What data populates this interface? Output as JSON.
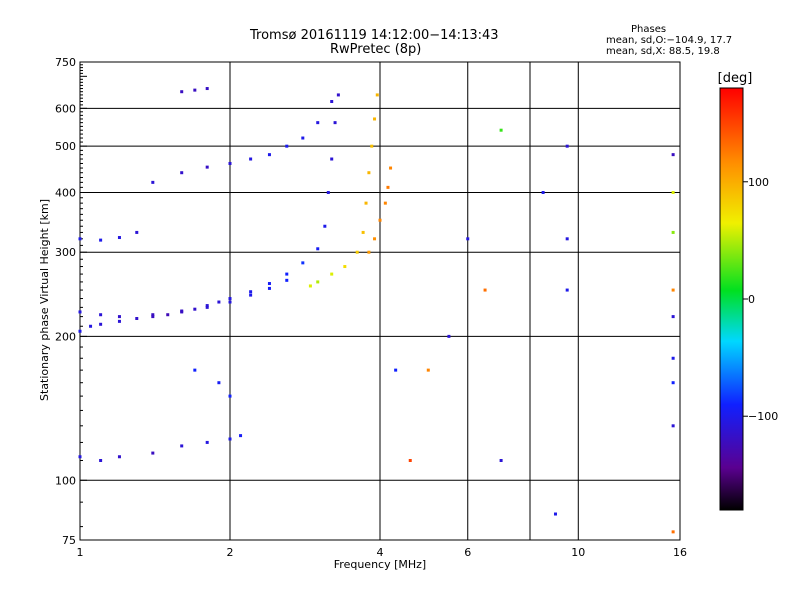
{
  "header": {
    "title_line1": "Tromsø 20161119 14:12:00−14:13:43",
    "title_line2": "RwPretec (8p)",
    "stats_title": "Phases",
    "stats_line1": "mean, sd,O:−104.9, 17.7",
    "stats_line2": "mean, sd,X:  88.5, 19.8"
  },
  "colorbar": {
    "label": "[deg]",
    "ticks": [
      "100",
      "0",
      "−100"
    ],
    "tick_values": [
      100,
      0,
      -100
    ],
    "range": [
      -180,
      180
    ]
  },
  "chart_data": {
    "type": "scatter",
    "xlabel": "Frequency [MHz]",
    "ylabel": "Stationary phase Virtual Height [km]",
    "xscale": "log",
    "yscale": "log",
    "xlim": [
      1,
      16
    ],
    "ylim": [
      75,
      750
    ],
    "xticks": [
      1,
      2,
      4,
      6,
      10,
      16
    ],
    "xtick_labels": [
      "1",
      "2",
      "4",
      "6",
      "10",
      "16"
    ],
    "yticks": [
      75,
      100,
      200,
      300,
      400,
      500,
      600,
      750
    ],
    "ytick_labels": [
      "75",
      "100",
      "200",
      "300",
      "400",
      "500",
      "600",
      "750"
    ],
    "grid_x": [
      2,
      4,
      6,
      8,
      10
    ],
    "grid_y": [
      100,
      200,
      300,
      400,
      500,
      600
    ],
    "grid": true,
    "series": [
      {
        "points": [
          [
            1.0,
            205,
            -100
          ],
          [
            1.05,
            210,
            -105
          ],
          [
            1.1,
            212,
            -110
          ],
          [
            1.2,
            215,
            -110
          ],
          [
            1.3,
            218,
            -115
          ],
          [
            1.4,
            220,
            -120
          ],
          [
            1.5,
            222,
            -125
          ],
          [
            1.6,
            225,
            -120
          ],
          [
            1.7,
            228,
            -115
          ],
          [
            1.8,
            232,
            -110
          ],
          [
            1.9,
            236,
            -110
          ],
          [
            2.0,
            240,
            -105
          ],
          [
            2.2,
            248,
            -100
          ],
          [
            2.4,
            258,
            -95
          ],
          [
            2.6,
            270,
            -90
          ],
          [
            2.8,
            285,
            -85
          ],
          [
            3.0,
            305,
            -95
          ],
          [
            3.1,
            340,
            -100
          ],
          [
            3.15,
            400,
            -105
          ],
          [
            3.2,
            470,
            -110
          ],
          [
            3.25,
            560,
            -110
          ],
          [
            3.3,
            640,
            -115
          ]
        ]
      },
      {
        "points": [
          [
            1.0,
            225,
            -105
          ],
          [
            1.1,
            222,
            -110
          ],
          [
            1.2,
            220,
            -115
          ],
          [
            1.4,
            222,
            -120
          ],
          [
            1.6,
            226,
            -118
          ],
          [
            1.8,
            230,
            -110
          ],
          [
            2.0,
            236,
            -105
          ],
          [
            2.2,
            244,
            -100
          ],
          [
            2.4,
            252,
            -95
          ],
          [
            2.6,
            262,
            -90
          ]
        ]
      },
      {
        "points": [
          [
            1.4,
            420,
            -110
          ],
          [
            1.6,
            440,
            -115
          ],
          [
            1.8,
            452,
            -118
          ],
          [
            2.0,
            460,
            -110
          ],
          [
            2.2,
            470,
            -105
          ],
          [
            2.4,
            480,
            -100
          ],
          [
            2.6,
            500,
            -98
          ],
          [
            2.8,
            520,
            -100
          ],
          [
            3.0,
            560,
            -105
          ],
          [
            3.2,
            620,
            -110
          ]
        ]
      },
      {
        "points": [
          [
            2.9,
            255,
            60
          ],
          [
            3.0,
            260,
            50
          ],
          [
            3.2,
            270,
            60
          ],
          [
            3.4,
            280,
            75
          ],
          [
            3.6,
            300,
            85
          ],
          [
            3.7,
            330,
            90
          ],
          [
            3.75,
            380,
            95
          ],
          [
            3.8,
            440,
            95
          ],
          [
            3.85,
            500,
            90
          ],
          [
            3.9,
            570,
            95
          ],
          [
            3.95,
            640,
            95
          ]
        ]
      },
      {
        "points": [
          [
            3.8,
            300,
            110
          ],
          [
            3.9,
            320,
            115
          ],
          [
            4.0,
            350,
            120
          ],
          [
            4.1,
            380,
            120
          ],
          [
            4.15,
            410,
            125
          ],
          [
            4.2,
            450,
            120
          ]
        ]
      },
      {
        "points": [
          [
            1.0,
            320,
            -100
          ],
          [
            1.1,
            318,
            -100
          ],
          [
            1.2,
            322,
            -105
          ],
          [
            1.3,
            330,
            -110
          ],
          [
            1.6,
            650,
            -120
          ],
          [
            1.7,
            655,
            -120
          ],
          [
            1.8,
            660,
            -118
          ]
        ]
      },
      {
        "points": [
          [
            1.0,
            112,
            -105
          ],
          [
            1.1,
            110,
            -110
          ],
          [
            1.2,
            112,
            -115
          ],
          [
            1.4,
            114,
            -120
          ],
          [
            1.6,
            118,
            -110
          ],
          [
            1.8,
            120,
            -105
          ],
          [
            2.0,
            122,
            -100
          ],
          [
            2.1,
            124,
            -95
          ],
          [
            1.9,
            160,
            -95
          ],
          [
            2.0,
            150,
            -90
          ],
          [
            1.7,
            170,
            -90
          ]
        ]
      },
      {
        "points": [
          [
            4.3,
            170,
            -90
          ],
          [
            4.6,
            110,
            150
          ],
          [
            5.0,
            170,
            120
          ],
          [
            5.5,
            200,
            -110
          ],
          [
            6.0,
            320,
            -105
          ],
          [
            6.5,
            250,
            130
          ],
          [
            7.0,
            540,
            20
          ],
          [
            7.0,
            110,
            -110
          ],
          [
            8.5,
            400,
            -100
          ],
          [
            9.0,
            85,
            -100
          ],
          [
            9.5,
            500,
            -110
          ],
          [
            9.5,
            320,
            -105
          ],
          [
            9.5,
            250,
            -100
          ],
          [
            15.5,
            480,
            -120
          ],
          [
            15.5,
            400,
            60
          ],
          [
            15.5,
            330,
            40
          ],
          [
            15.5,
            250,
            120
          ],
          [
            15.5,
            220,
            -110
          ],
          [
            15.5,
            180,
            -100
          ],
          [
            15.5,
            160,
            -90
          ],
          [
            15.5,
            130,
            -110
          ],
          [
            15.5,
            78,
            130
          ]
        ]
      }
    ]
  }
}
